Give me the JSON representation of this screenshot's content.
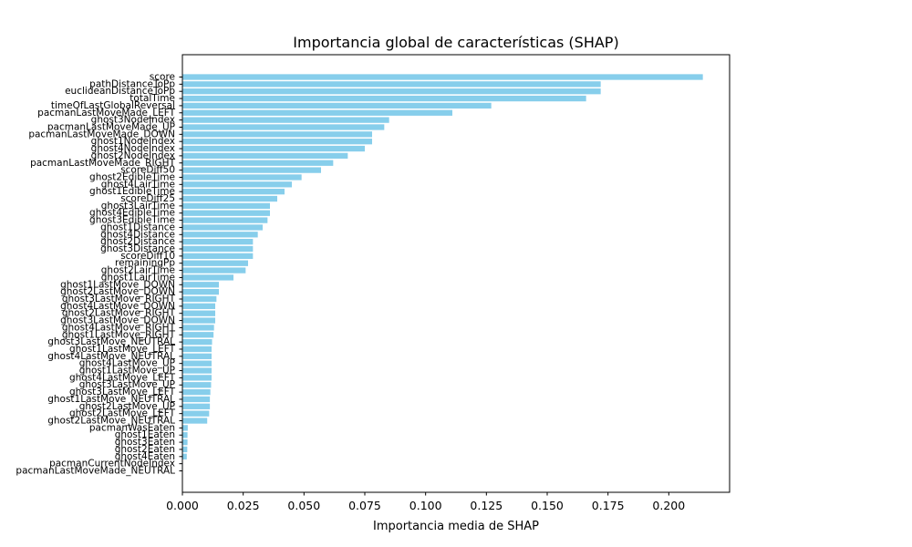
{
  "chart_data": {
    "type": "bar",
    "orientation": "horizontal",
    "title": "Importancia global de características (SHAP)",
    "xlabel": "Importancia media de SHAP",
    "ylabel": "",
    "xlim": [
      0,
      0.225
    ],
    "xticks": [
      "0.000",
      "0.025",
      "0.050",
      "0.075",
      "0.100",
      "0.125",
      "0.150",
      "0.175",
      "0.200"
    ],
    "bar_color": "#87ceeb",
    "grid": false,
    "categories": [
      "score",
      "pathDistanceToPp",
      "euclideanDistanceToPp",
      "totalTime",
      "timeOfLastGlobalReversal",
      "pacmanLastMoveMade_LEFT",
      "ghost3NodeIndex",
      "pacmanLastMoveMade_UP",
      "pacmanLastMoveMade_DOWN",
      "ghost1NodeIndex",
      "ghost4NodeIndex",
      "ghost2NodeIndex",
      "pacmanLastMoveMade_RIGHT",
      "scoreDiff50",
      "ghost2EdibleTime",
      "ghost4LairTime",
      "ghost1EdibleTime",
      "scoreDiff25",
      "ghost3LairTime",
      "ghost4EdibleTime",
      "ghost3EdibleTime",
      "ghost1Distance",
      "ghost4Distance",
      "ghost2Distance",
      "ghost3Distance",
      "scoreDiff10",
      "remainingPp",
      "ghost2LairTime",
      "ghost1LairTime",
      "ghost1LastMove_DOWN",
      "ghost2LastMove_DOWN",
      "ghost3LastMove_RIGHT",
      "ghost4LastMove_DOWN",
      "ghost2LastMove_RIGHT",
      "ghost3LastMove_DOWN",
      "ghost4LastMove_RIGHT",
      "ghost1LastMove_RIGHT",
      "ghost3LastMove_NEUTRAL",
      "ghost1LastMove_LEFT",
      "ghost4LastMove_NEUTRAL",
      "ghost4LastMove_UP",
      "ghost1LastMove_UP",
      "ghost4LastMove_LEFT",
      "ghost3LastMove_UP",
      "ghost3LastMove_LEFT",
      "ghost1LastMove_NEUTRAL",
      "ghost2LastMove_UP",
      "ghost2LastMove_LEFT",
      "ghost2LastMove_NEUTRAL",
      "pacmanWasEaten",
      "ghost1Eaten",
      "ghost3Eaten",
      "ghost2Eaten",
      "ghost4Eaten",
      "pacmanCurrentNodeIndex",
      "pacmanLastMoveMade_NEUTRAL"
    ],
    "values": [
      0.214,
      0.172,
      0.172,
      0.166,
      0.127,
      0.111,
      0.085,
      0.083,
      0.078,
      0.078,
      0.075,
      0.068,
      0.062,
      0.057,
      0.049,
      0.045,
      0.042,
      0.039,
      0.036,
      0.036,
      0.035,
      0.033,
      0.031,
      0.029,
      0.029,
      0.029,
      0.027,
      0.026,
      0.021,
      0.015,
      0.015,
      0.014,
      0.0135,
      0.0135,
      0.0135,
      0.013,
      0.0128,
      0.0122,
      0.012,
      0.012,
      0.012,
      0.012,
      0.012,
      0.0118,
      0.0115,
      0.0113,
      0.0113,
      0.011,
      0.0102,
      0.0022,
      0.0021,
      0.0021,
      0.002,
      0.0018,
      0.0002,
      0.0001
    ]
  }
}
